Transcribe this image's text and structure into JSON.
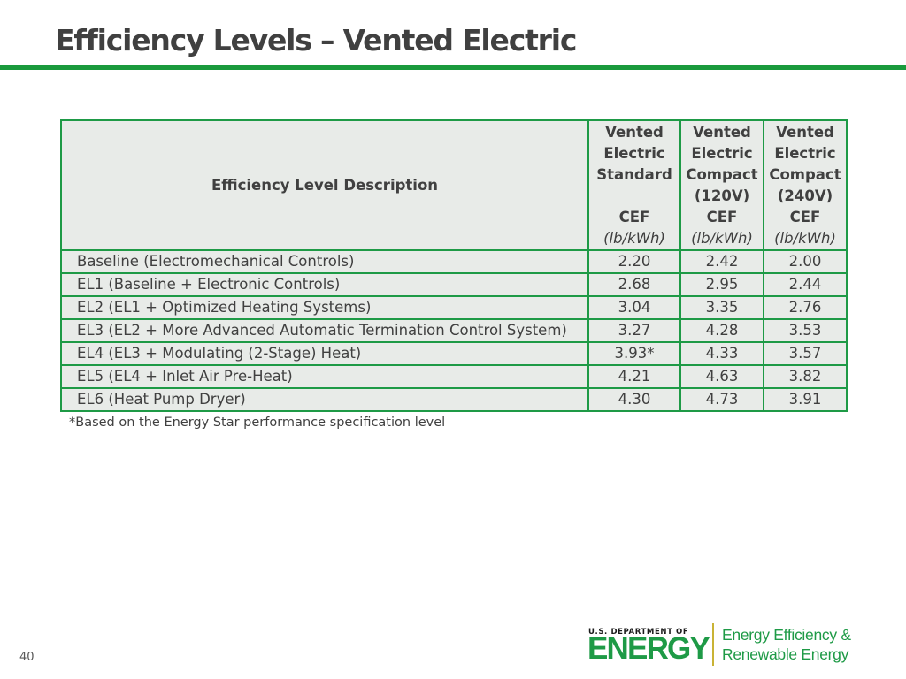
{
  "title": "Efficiency Levels – Vented Electric",
  "colors": {
    "accent_green": "#1a9a3c",
    "table_border": "#1e9a46",
    "table_fill": "#e8ebe8",
    "logo_divider": "#c9b335"
  },
  "table": {
    "description_header": "Efficiency Level Description",
    "columns": [
      {
        "line1": "Vented",
        "line2": "Electric",
        "line3": "Standard",
        "line4": "",
        "metric": "CEF",
        "unit": "(lb/kWh)"
      },
      {
        "line1": "Vented",
        "line2": "Electric",
        "line3": "Compact",
        "line4": "(120V)",
        "metric": "CEF",
        "unit": "(lb/kWh)"
      },
      {
        "line1": "Vented",
        "line2": "Electric",
        "line3": "Compact",
        "line4": "(240V)",
        "metric": "CEF",
        "unit": "(lb/kWh)"
      }
    ],
    "rows": [
      {
        "description": "Baseline (Electromechanical Controls)",
        "standard": "2.20",
        "compact_120": "2.42",
        "compact_240": "2.00"
      },
      {
        "description": "EL1 (Baseline + Electronic Controls)",
        "standard": "2.68",
        "compact_120": "2.95",
        "compact_240": "2.44"
      },
      {
        "description": "EL2 (EL1 + Optimized Heating Systems)",
        "standard": "3.04",
        "compact_120": "3.35",
        "compact_240": "2.76"
      },
      {
        "description": "EL3 (EL2 + More Advanced Automatic Termination Control System)",
        "standard": "3.27",
        "compact_120": "4.28",
        "compact_240": "3.53"
      },
      {
        "description": "EL4 (EL3 + Modulating (2-Stage) Heat)",
        "standard": "3.93*",
        "compact_120": "4.33",
        "compact_240": "3.57"
      },
      {
        "description": "EL5 (EL4 + Inlet Air Pre-Heat)",
        "standard": "4.21",
        "compact_120": "4.63",
        "compact_240": "3.82"
      },
      {
        "description": "EL6 (Heat Pump Dryer)",
        "standard": "4.30",
        "compact_120": "4.73",
        "compact_240": "3.91"
      }
    ]
  },
  "footnote": "*Based on the Energy Star performance specification level",
  "page_number": "40",
  "logo": {
    "department": "U.S. DEPARTMENT OF",
    "energy": "ENERGY",
    "office_line1": "Energy Efficiency &",
    "office_line2": "Renewable Energy"
  }
}
